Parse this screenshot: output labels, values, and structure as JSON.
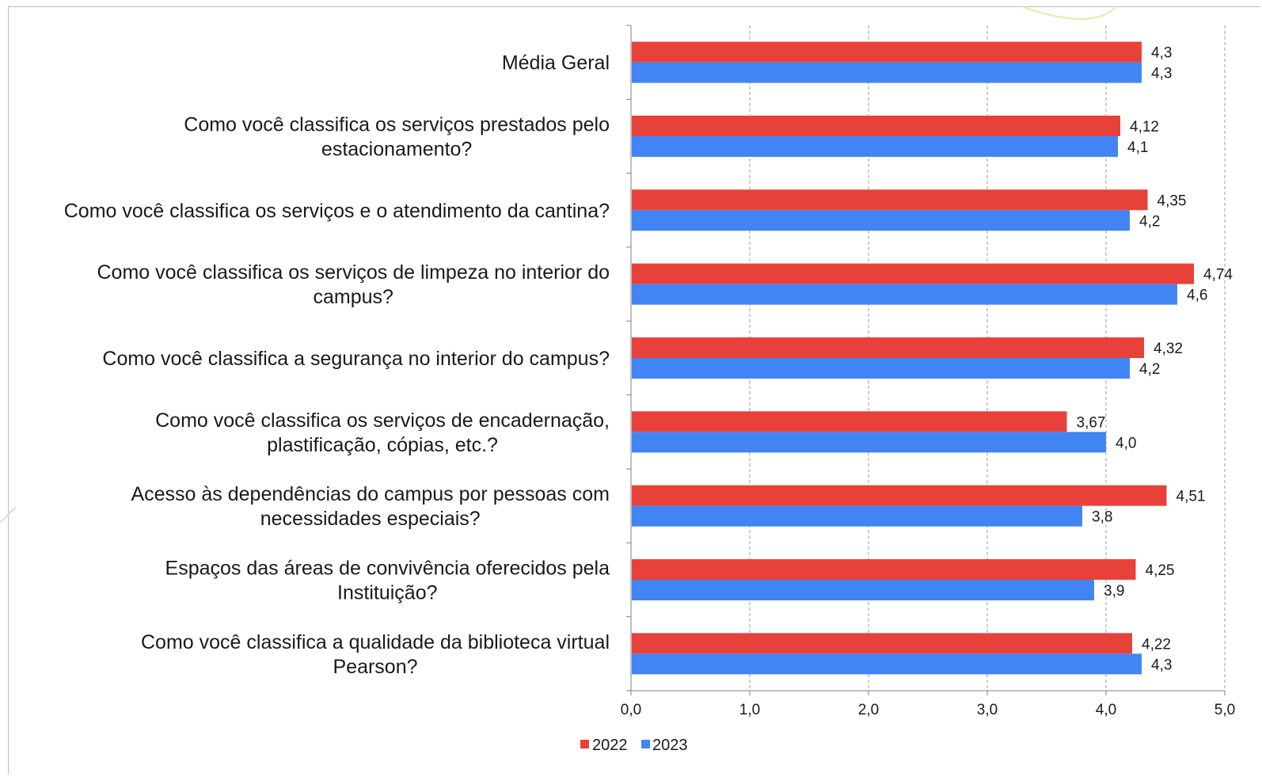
{
  "colors": {
    "series_2022": "#e8413a",
    "series_2023": "#4185f4",
    "grid": "#9e9e9e",
    "axis": "#7f7f7f"
  },
  "chart_data": {
    "type": "bar",
    "orientation": "horizontal",
    "title": "",
    "xlabel": "",
    "ylabel": "",
    "xlim": [
      0,
      5
    ],
    "x_ticks": [
      "0,0",
      "1,0",
      "2,0",
      "3,0",
      "4,0",
      "5,0"
    ],
    "grid": "vertical dashed",
    "legend_position": "bottom",
    "categories": [
      [
        "Média Geral"
      ],
      [
        "Como você classifica os serviços prestados pelo",
        "estacionamento?"
      ],
      [
        "Como você classifica os serviços e o atendimento da cantina?"
      ],
      [
        "Como você classifica os serviços de limpeza no interior do",
        "campus?"
      ],
      [
        "Como você classifica a segurança no interior do campus?"
      ],
      [
        "Como você classifica os serviços de encadernação,",
        "plastificação, cópias, etc.?"
      ],
      [
        "Acesso às dependências do campus por pessoas com",
        "necessidades especiais?"
      ],
      [
        "Espaços das áreas de convivência oferecidos pela",
        "Instituição?"
      ],
      [
        "Como você classifica a qualidade da biblioteca virtual",
        "Pearson?"
      ]
    ],
    "series": [
      {
        "name": "2022",
        "values": [
          4.3,
          4.12,
          4.35,
          4.74,
          4.32,
          3.67,
          4.51,
          4.25,
          4.22
        ],
        "labels": [
          "4,3",
          "4,12",
          "4,35",
          "4,74",
          "4,32",
          "3,67",
          "4,51",
          "4,25",
          "4,22"
        ]
      },
      {
        "name": "2023",
        "values": [
          4.3,
          4.1,
          4.2,
          4.6,
          4.2,
          4.0,
          3.8,
          3.9,
          4.3
        ],
        "labels": [
          "4,3",
          "4,1",
          "4,2",
          "4,6",
          "4,2",
          "4,0",
          "3,8",
          "3,9",
          "4,3"
        ]
      }
    ]
  }
}
